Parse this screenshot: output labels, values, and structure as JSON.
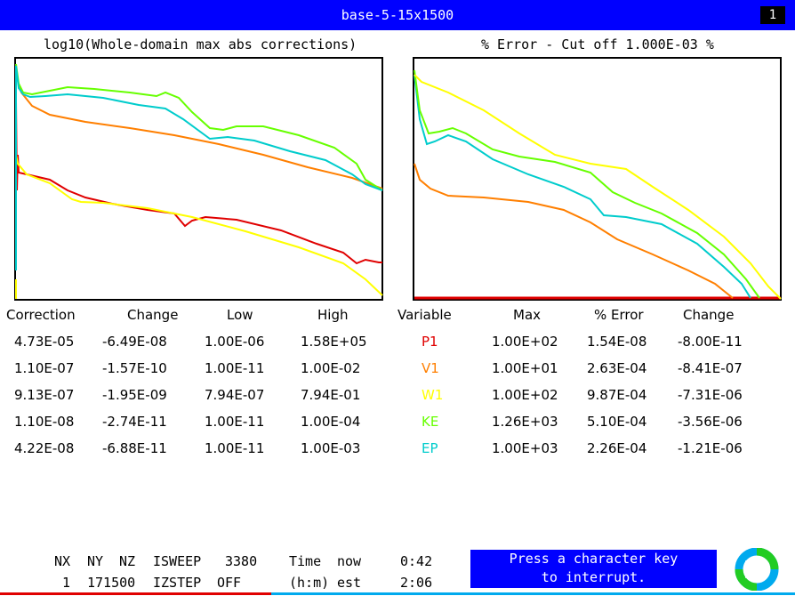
{
  "window": {
    "title": "base-5-15x1500",
    "badge": "1"
  },
  "left_plot": {
    "title": "log10(Whole-domain max abs corrections)"
  },
  "right_plot": {
    "title": "% Error - Cut off 1.000E-03 %"
  },
  "correction_table": {
    "headers": [
      "Correction",
      "Change",
      "Low",
      "High"
    ],
    "rows": [
      [
        "4.73E-05",
        "-6.49E-08",
        "1.00E-06",
        "1.58E+05"
      ],
      [
        "1.10E-07",
        "-1.57E-10",
        "1.00E-11",
        "1.00E-02"
      ],
      [
        "9.13E-07",
        "-1.95E-09",
        "7.94E-07",
        "7.94E-01"
      ],
      [
        "1.10E-08",
        "-2.74E-11",
        "1.00E-11",
        "1.00E-04"
      ],
      [
        "4.22E-08",
        "-6.88E-11",
        "1.00E-11",
        "1.00E-03"
      ]
    ]
  },
  "variable_table": {
    "headers": [
      "Variable",
      "Max",
      "% Error",
      "Change"
    ],
    "rows": [
      {
        "name": "P1",
        "color": "#e00000",
        "max": "1.00E+02",
        "error": "1.54E-08",
        "change": "-8.00E-11"
      },
      {
        "name": "V1",
        "color": "#ff7f00",
        "max": "1.00E+01",
        "error": "2.63E-04",
        "change": "-8.41E-07"
      },
      {
        "name": "W1",
        "color": "#ffff00",
        "max": "1.00E+02",
        "error": "9.87E-04",
        "change": "-7.31E-06"
      },
      {
        "name": "KE",
        "color": "#66ff00",
        "max": "1.26E+03",
        "error": "5.10E-04",
        "change": "-3.56E-06"
      },
      {
        "name": "EP",
        "color": "#00cccc",
        "max": "1.00E+03",
        "error": "2.26E-04",
        "change": "-1.21E-06"
      }
    ]
  },
  "status": {
    "row1": [
      "NX",
      "NY",
      "NZ",
      "ISWEEP",
      "3380",
      "Time",
      "now",
      "0:42"
    ],
    "row2": [
      "1",
      "171500",
      "IZSTEP",
      "OFF",
      "(h:m)",
      "est",
      "2:06"
    ]
  },
  "press_message": {
    "line1": "Press a character key",
    "line2": "to interrupt."
  },
  "colors": {
    "title_bar": "#0000ff",
    "P1": "#e00000",
    "V1": "#ff7f00",
    "W1": "#ffff00",
    "KE": "#66ff00",
    "EP": "#00cccc"
  },
  "icons": {
    "logo": "phoenics-logo-icon"
  }
}
